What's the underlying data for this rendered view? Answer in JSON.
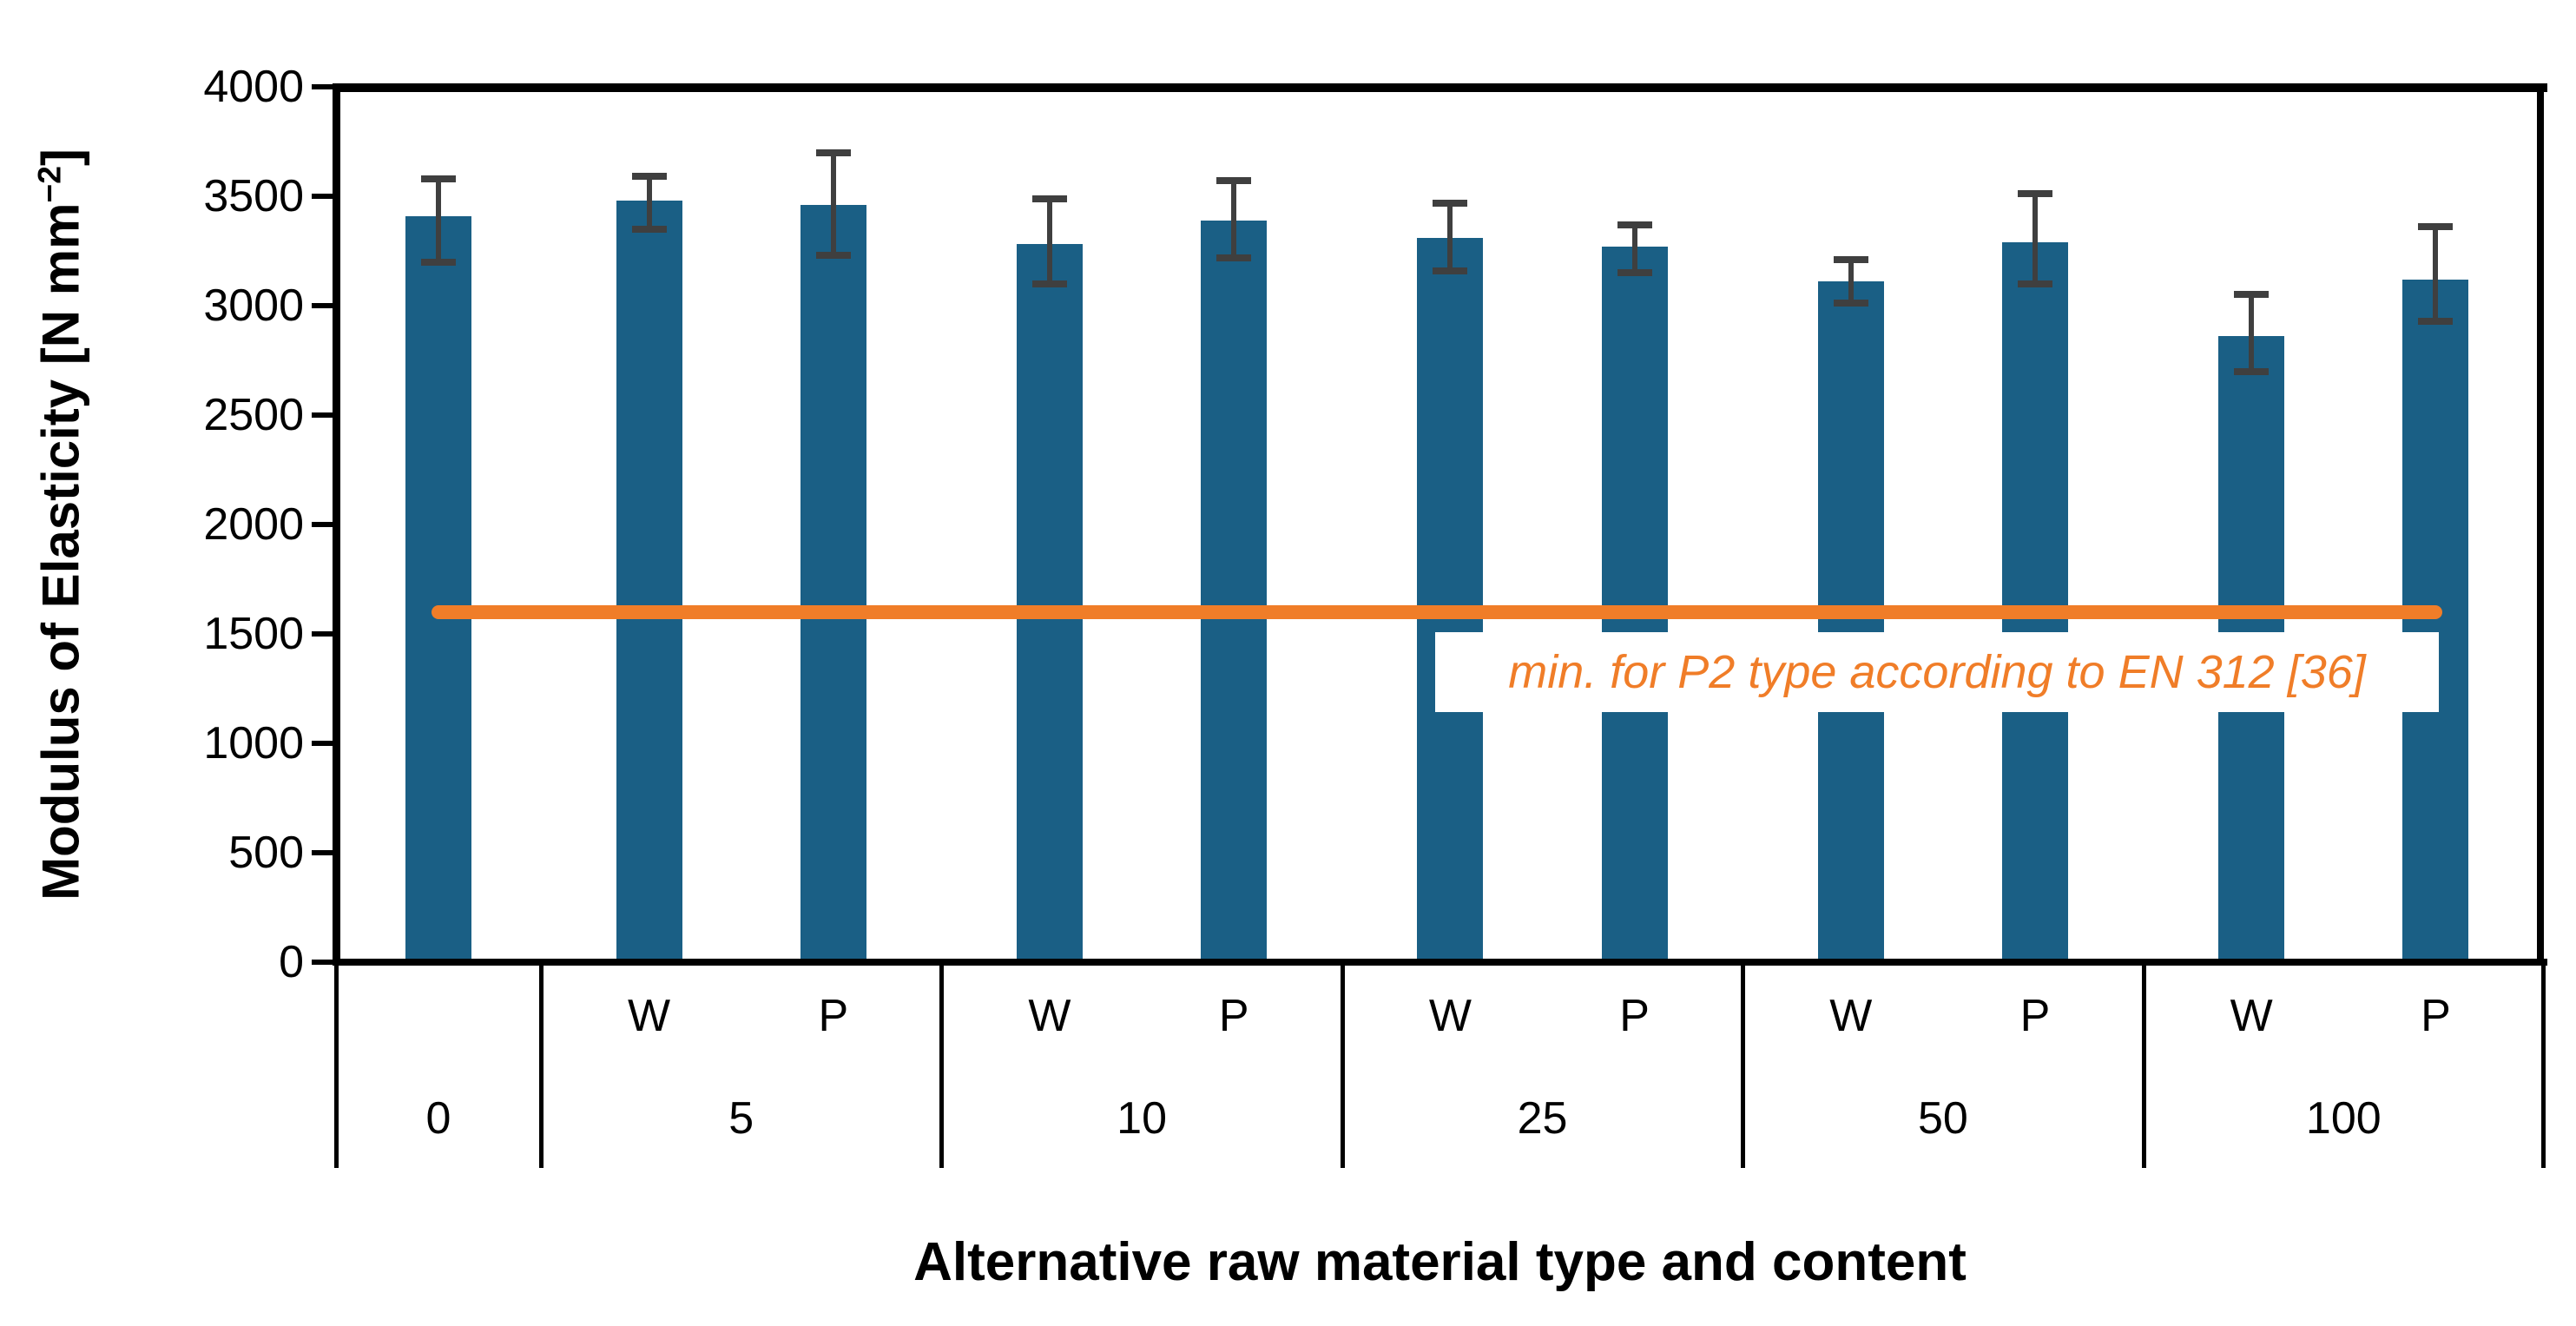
{
  "labels": {
    "ylabel_main": "Modulus of Elasticity [N mm",
    "ylabel_sup": "−2",
    "ylabel_close": "]",
    "xlabel": "Alternative raw material type and content",
    "ref_label": "min. for P2 type according to EN 312 [36]"
  },
  "colors": {
    "bar": "#1A5F85",
    "reference": "#F07D28",
    "error": "#3F3F3F",
    "axis": "#000000",
    "background": "#FFFFFF"
  },
  "chart_data": {
    "type": "bar",
    "title": "",
    "xlabel": "Alternative raw material type and content",
    "ylabel": "Modulus of Elasticity [N mm−2]",
    "ylim": [
      0,
      4000
    ],
    "yticks": [
      4000,
      3500,
      3000,
      2500,
      2000,
      1500,
      1000,
      500,
      0
    ],
    "grid": false,
    "legend": false,
    "bar_color": "#1A5F85",
    "error_bar_color": "#3F3F3F",
    "groups": [
      {
        "label": "0",
        "bars": [
          {
            "type": "",
            "value": 3410,
            "err_hi": 3580,
            "err_lo": 3200
          }
        ]
      },
      {
        "label": "5",
        "bars": [
          {
            "type": "W",
            "value": 3480,
            "err_hi": 3590,
            "err_lo": 3350
          },
          {
            "type": "P",
            "value": 3460,
            "err_hi": 3700,
            "err_lo": 3230
          }
        ]
      },
      {
        "label": "10",
        "bars": [
          {
            "type": "W",
            "value": 3280,
            "err_hi": 3490,
            "err_lo": 3100
          },
          {
            "type": "P",
            "value": 3390,
            "err_hi": 3570,
            "err_lo": 3220
          }
        ]
      },
      {
        "label": "25",
        "bars": [
          {
            "type": "W",
            "value": 3310,
            "err_hi": 3470,
            "err_lo": 3160
          },
          {
            "type": "P",
            "value": 3270,
            "err_hi": 3370,
            "err_lo": 3150
          }
        ]
      },
      {
        "label": "50",
        "bars": [
          {
            "type": "W",
            "value": 3110,
            "err_hi": 3210,
            "err_lo": 3010
          },
          {
            "type": "P",
            "value": 3290,
            "err_hi": 3510,
            "err_lo": 3100
          }
        ]
      },
      {
        "label": "100",
        "bars": [
          {
            "type": "W",
            "value": 2860,
            "err_hi": 3050,
            "err_lo": 2700
          },
          {
            "type": "P",
            "value": 3120,
            "err_hi": 3360,
            "err_lo": 2930
          }
        ]
      }
    ],
    "reference_line": {
      "value": 1600,
      "label": "min. for P2 type according to EN 312 [36]",
      "color": "#F07D28"
    }
  }
}
